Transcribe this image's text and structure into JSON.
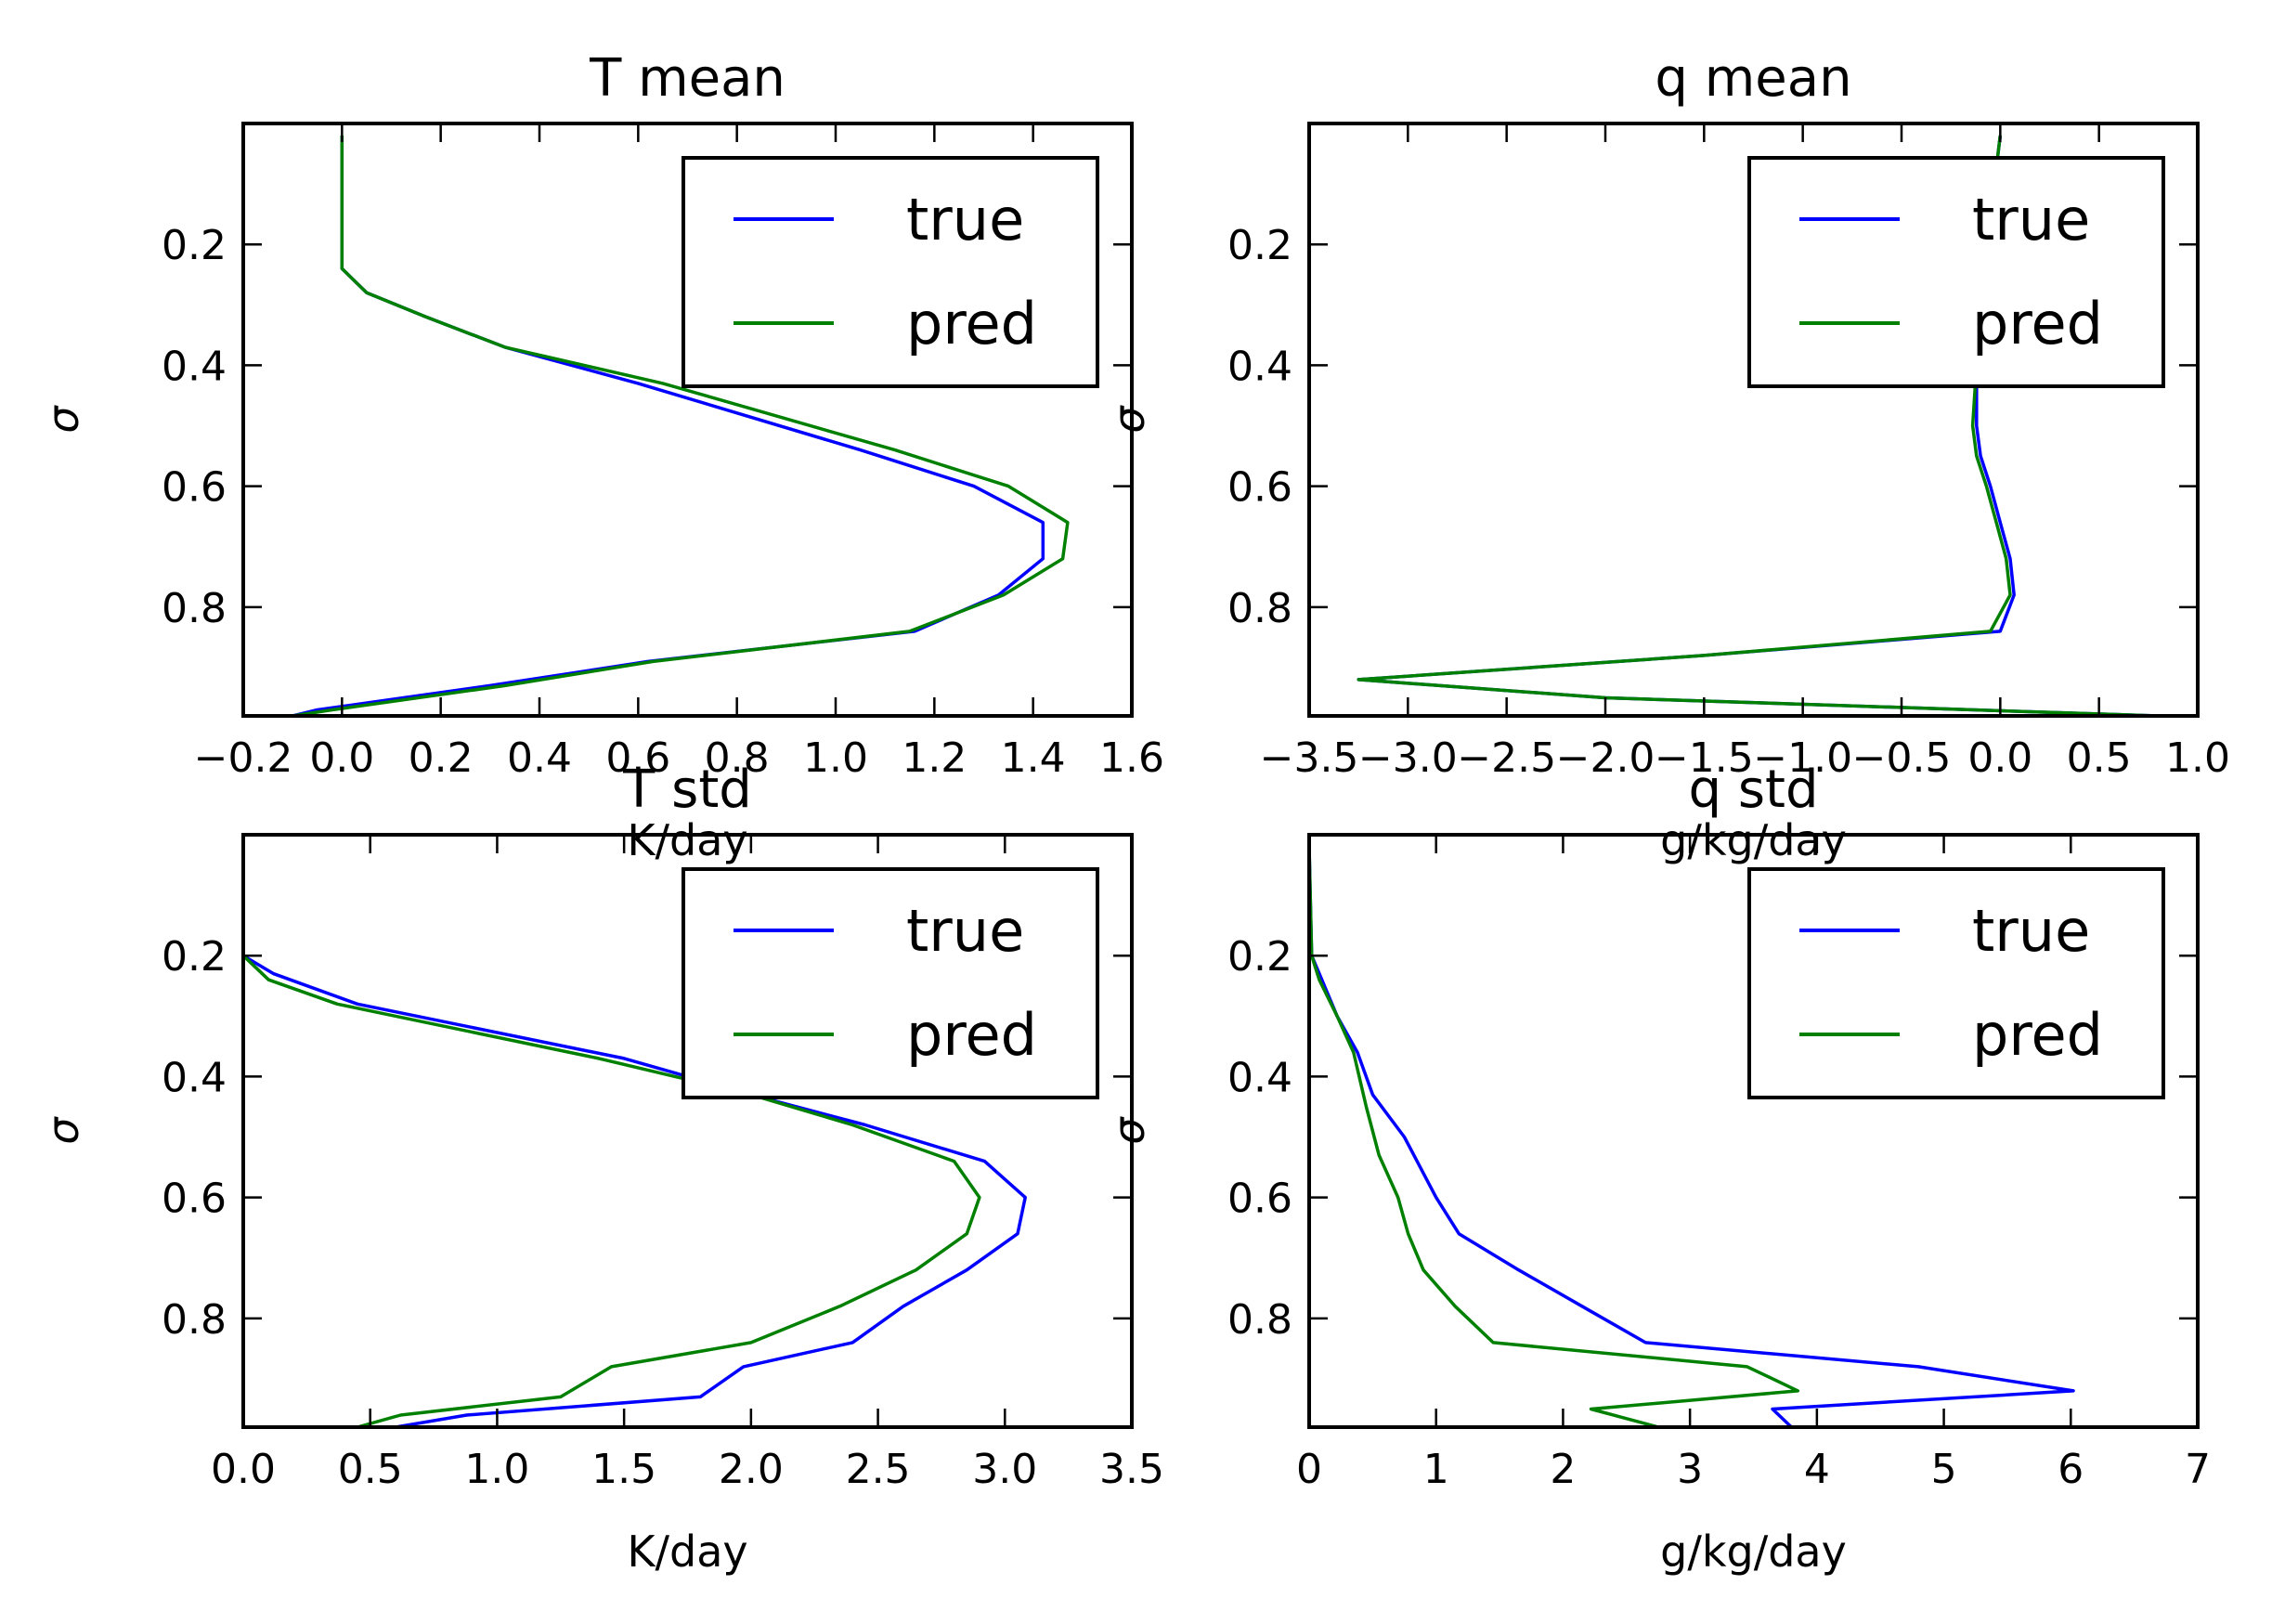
{
  "colors": {
    "true": "#0000ff",
    "pred": "#008000",
    "axes": "#000000"
  },
  "chart_data": [
    {
      "type": "line",
      "title": "T mean",
      "xlabel": "K/day",
      "ylabel": "σ",
      "xlim": [
        -0.2,
        1.6
      ],
      "ylim": [
        0.0,
        0.98
      ],
      "y_inverted": true,
      "xticks": [
        -0.2,
        0.0,
        0.2,
        0.4,
        0.6,
        0.8,
        1.0,
        1.2,
        1.4,
        1.6
      ],
      "xtick_labels": [
        "−0.2",
        "0.0",
        "0.2",
        "0.4",
        "0.6",
        "0.8",
        "1.0",
        "1.2",
        "1.4",
        "1.6"
      ],
      "yticks": [
        0.2,
        0.4,
        0.6,
        0.8
      ],
      "ytick_labels": [
        "0.2",
        "0.4",
        "0.6",
        "0.8"
      ],
      "legend_position": "top-right",
      "series": [
        {
          "name": "true",
          "color_key": "true",
          "x": [
            -0.0,
            -0.0,
            -0.0,
            0.0,
            0.05,
            0.17,
            0.33,
            0.6,
            1.05,
            1.28,
            1.42,
            1.42,
            1.33,
            1.16,
            0.62,
            0.3,
            -0.05,
            -0.1
          ],
          "y": [
            0.02,
            0.1,
            0.2,
            0.24,
            0.28,
            0.32,
            0.37,
            0.43,
            0.54,
            0.6,
            0.66,
            0.72,
            0.78,
            0.84,
            0.89,
            0.93,
            0.97,
            0.98
          ]
        },
        {
          "name": "pred",
          "color_key": "pred",
          "x": [
            -0.0,
            -0.0,
            -0.0,
            0.0,
            0.05,
            0.17,
            0.33,
            0.65,
            1.12,
            1.35,
            1.47,
            1.46,
            1.34,
            1.15,
            0.63,
            0.33,
            -0.02,
            -0.1
          ],
          "y": [
            0.02,
            0.1,
            0.2,
            0.24,
            0.28,
            0.32,
            0.37,
            0.43,
            0.54,
            0.6,
            0.66,
            0.72,
            0.78,
            0.84,
            0.89,
            0.93,
            0.97,
            0.98
          ]
        }
      ]
    },
    {
      "type": "line",
      "title": "q mean",
      "xlabel": "g/kg/day",
      "ylabel": "σ",
      "xlim": [
        -3.5,
        1.0
      ],
      "ylim": [
        0.0,
        0.98
      ],
      "y_inverted": true,
      "xticks": [
        -3.5,
        -3.0,
        -2.5,
        -2.0,
        -1.5,
        -1.0,
        -0.5,
        0.0,
        0.5,
        1.0
      ],
      "xtick_labels": [
        "−3.5",
        "−3.0",
        "−2.5",
        "−2.0",
        "−1.5",
        "−1.0",
        "−0.5",
        "0.0",
        "0.5",
        "1.0"
      ],
      "yticks": [
        0.2,
        0.4,
        0.6,
        0.8
      ],
      "ytick_labels": [
        "0.2",
        "0.4",
        "0.6",
        "0.8"
      ],
      "legend_position": "top-right",
      "series": [
        {
          "name": "true",
          "color_key": "true",
          "x": [
            -0.0,
            -0.03,
            -0.06,
            -0.1,
            -0.12,
            -0.12,
            -0.1,
            -0.05,
            0.0,
            0.05,
            0.07,
            0.0,
            -1.5,
            -3.25,
            -2.0,
            0.8
          ],
          "y": [
            0.02,
            0.1,
            0.2,
            0.3,
            0.4,
            0.5,
            0.55,
            0.6,
            0.66,
            0.72,
            0.78,
            0.84,
            0.88,
            0.92,
            0.95,
            0.98
          ]
        },
        {
          "name": "pred",
          "color_key": "pred",
          "x": [
            -0.0,
            -0.03,
            -0.06,
            -0.1,
            -0.12,
            -0.14,
            -0.12,
            -0.07,
            -0.02,
            0.03,
            0.05,
            -0.05,
            -1.5,
            -3.25,
            -2.0,
            0.8
          ],
          "y": [
            0.02,
            0.1,
            0.2,
            0.3,
            0.4,
            0.5,
            0.55,
            0.6,
            0.66,
            0.72,
            0.78,
            0.84,
            0.88,
            0.92,
            0.95,
            0.98
          ]
        }
      ]
    },
    {
      "type": "line",
      "title": "T std",
      "xlabel": "K/day",
      "ylabel": "σ",
      "xlim": [
        0.0,
        3.5
      ],
      "ylim": [
        0.0,
        0.98
      ],
      "y_inverted": true,
      "xticks": [
        0.0,
        0.5,
        1.0,
        1.5,
        2.0,
        2.5,
        3.0,
        3.5
      ],
      "xtick_labels": [
        "0.0",
        "0.5",
        "1.0",
        "1.5",
        "2.0",
        "2.5",
        "3.0",
        "3.5"
      ],
      "yticks": [
        0.2,
        0.4,
        0.6,
        0.8
      ],
      "ytick_labels": [
        "0.2",
        "0.4",
        "0.6",
        "0.8"
      ],
      "legend_position": "top-right",
      "series": [
        {
          "name": "true",
          "color_key": "true",
          "x": [
            0.0,
            0.12,
            0.45,
            1.5,
            2.0,
            2.45,
            2.92,
            3.08,
            3.05,
            2.85,
            2.6,
            2.4,
            1.97,
            1.8,
            0.88,
            0.6
          ],
          "y": [
            0.2,
            0.23,
            0.28,
            0.37,
            0.43,
            0.48,
            0.54,
            0.6,
            0.66,
            0.72,
            0.78,
            0.84,
            0.88,
            0.93,
            0.96,
            0.98
          ]
        },
        {
          "name": "pred",
          "color_key": "pred",
          "x": [
            0.0,
            0.1,
            0.37,
            1.4,
            2.0,
            2.4,
            2.8,
            2.9,
            2.85,
            2.65,
            2.35,
            2.0,
            1.45,
            1.25,
            0.62,
            0.45
          ],
          "y": [
            0.2,
            0.24,
            0.28,
            0.37,
            0.43,
            0.48,
            0.54,
            0.6,
            0.66,
            0.72,
            0.78,
            0.84,
            0.88,
            0.93,
            0.96,
            0.98
          ]
        }
      ]
    },
    {
      "type": "line",
      "title": "q std",
      "xlabel": "g/kg/day",
      "ylabel": "σ",
      "xlim": [
        0.0,
        7.0
      ],
      "ylim": [
        0.0,
        0.98
      ],
      "y_inverted": true,
      "xticks": [
        0,
        1,
        2,
        3,
        4,
        5,
        6,
        7
      ],
      "xtick_labels": [
        "0",
        "1",
        "2",
        "3",
        "4",
        "5",
        "6",
        "7"
      ],
      "yticks": [
        0.2,
        0.4,
        0.6,
        0.8
      ],
      "ytick_labels": [
        "0.2",
        "0.4",
        "0.6",
        "0.8"
      ],
      "legend_position": "top-right",
      "series": [
        {
          "name": "true",
          "color_key": "true",
          "x": [
            0.0,
            0.02,
            0.1,
            0.22,
            0.38,
            0.5,
            0.75,
            1.0,
            1.18,
            1.65,
            2.15,
            2.65,
            4.8,
            6.02,
            3.65,
            3.8
          ],
          "y": [
            0.02,
            0.2,
            0.24,
            0.3,
            0.36,
            0.43,
            0.5,
            0.6,
            0.66,
            0.72,
            0.78,
            0.84,
            0.88,
            0.92,
            0.95,
            0.98
          ]
        },
        {
          "name": "pred",
          "color_key": "pred",
          "x": [
            0.0,
            0.02,
            0.08,
            0.22,
            0.35,
            0.45,
            0.55,
            0.7,
            0.78,
            0.9,
            1.15,
            1.45,
            3.45,
            3.85,
            2.22,
            2.75
          ],
          "y": [
            0.02,
            0.2,
            0.24,
            0.3,
            0.36,
            0.45,
            0.53,
            0.6,
            0.66,
            0.72,
            0.78,
            0.84,
            0.88,
            0.92,
            0.95,
            0.98
          ]
        }
      ]
    }
  ]
}
